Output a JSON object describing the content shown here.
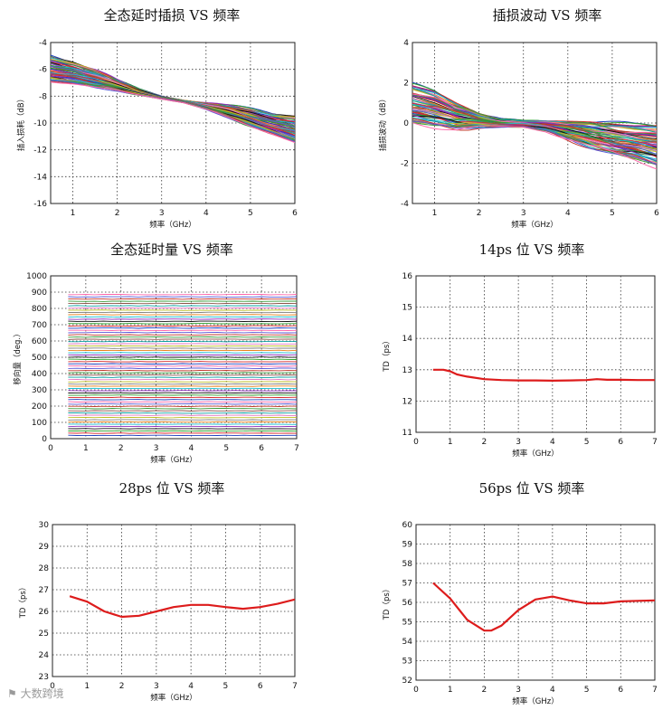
{
  "chart_data": [
    {
      "id": "c1",
      "type": "line",
      "title": "全态延时插损 VS 频率",
      "xlabel": "频率（GHz）",
      "ylabel": "插入损耗（dB）",
      "xlim": [
        0.5,
        6
      ],
      "ylim": [
        -16,
        -4
      ],
      "xticks": [
        1,
        2,
        3,
        4,
        5,
        6
      ],
      "yticks": [
        -16,
        -14,
        -12,
        -10,
        -8,
        -6,
        -4
      ],
      "grid": true,
      "series_count": 64,
      "envelope": {
        "x": [
          0.5,
          1.0,
          1.5,
          2.0,
          2.5,
          3.0,
          3.5,
          4.0,
          4.5,
          5.0,
          5.5,
          6.0
        ],
        "upper": [
          -5.0,
          -5.4,
          -6.0,
          -6.8,
          -7.5,
          -8.0,
          -8.3,
          -8.5,
          -8.7,
          -9.0,
          -9.3,
          -9.4
        ],
        "lower": [
          -6.9,
          -7.1,
          -7.4,
          -7.6,
          -7.9,
          -8.2,
          -8.5,
          -9.0,
          -9.6,
          -10.2,
          -10.8,
          -11.5
        ]
      }
    },
    {
      "id": "c2",
      "type": "line",
      "title": "插损波动 VS 频率",
      "xlabel": "频率（GHz）",
      "ylabel": "插损波动（dB）",
      "xlim": [
        0.5,
        6
      ],
      "ylim": [
        -4,
        4
      ],
      "xticks": [
        1,
        2,
        3,
        4,
        5,
        6
      ],
      "yticks": [
        -4,
        -2,
        0,
        2,
        4
      ],
      "grid": true,
      "series_count": 64,
      "envelope": {
        "x": [
          0.5,
          1.0,
          1.5,
          2.0,
          2.5,
          3.0,
          3.5,
          4.0,
          4.5,
          5.0,
          5.5,
          6.0
        ],
        "upper": [
          1.9,
          1.6,
          1.0,
          0.5,
          0.2,
          0.1,
          0.1,
          0.1,
          0.1,
          0.0,
          -0.1,
          -0.1
        ],
        "lower": [
          0.0,
          -0.2,
          -0.3,
          -0.2,
          -0.2,
          -0.2,
          -0.4,
          -0.8,
          -1.2,
          -1.5,
          -1.8,
          -2.2
        ]
      }
    },
    {
      "id": "c3",
      "type": "line",
      "title": "全态延时量 VS 频率",
      "xlabel": "频率（GHz）",
      "ylabel": "移向量（deg.）",
      "xlim": [
        0,
        7
      ],
      "ylim": [
        0,
        1000
      ],
      "xticks": [
        0,
        1,
        2,
        3,
        4,
        5,
        6,
        7
      ],
      "yticks": [
        0,
        100,
        200,
        300,
        400,
        500,
        600,
        700,
        800,
        900,
        1000
      ],
      "grid": true,
      "x_start": 0.5,
      "levels_min": 20,
      "levels_max": 885,
      "series_count": 64
    },
    {
      "id": "c4",
      "type": "line",
      "title": "14ps 位 VS 频率",
      "xlabel": "频率（GHz）",
      "ylabel": "TD（ps）",
      "xlim": [
        0,
        7
      ],
      "ylim": [
        11,
        16
      ],
      "xticks": [
        0,
        1,
        2,
        3,
        4,
        5,
        6,
        7
      ],
      "yticks": [
        11,
        12,
        13,
        14,
        15,
        16
      ],
      "grid": true,
      "series": [
        {
          "color": "#dd1c1c",
          "x": [
            0.5,
            0.8,
            1.0,
            1.2,
            1.5,
            2.0,
            2.5,
            3.0,
            3.5,
            4.0,
            4.5,
            5.0,
            5.3,
            5.6,
            6.0,
            6.5,
            7.0
          ],
          "y": [
            13.0,
            13.0,
            12.95,
            12.85,
            12.78,
            12.7,
            12.67,
            12.66,
            12.66,
            12.65,
            12.66,
            12.67,
            12.7,
            12.68,
            12.68,
            12.67,
            12.67
          ]
        }
      ]
    },
    {
      "id": "c5",
      "type": "line",
      "title": "28ps 位 VS 频率",
      "xlabel": "频率（GHz）",
      "ylabel": "TD（ps）",
      "xlim": [
        0,
        7
      ],
      "ylim": [
        23,
        30
      ],
      "xticks": [
        0,
        1,
        2,
        3,
        4,
        5,
        6,
        7
      ],
      "yticks": [
        23,
        24,
        25,
        26,
        27,
        28,
        29,
        30
      ],
      "grid": true,
      "series": [
        {
          "color": "#dd1c1c",
          "x": [
            0.5,
            1.0,
            1.5,
            2.0,
            2.5,
            3.0,
            3.5,
            4.0,
            4.5,
            5.0,
            5.5,
            6.0,
            6.5,
            7.0
          ],
          "y": [
            26.7,
            26.45,
            26.0,
            25.75,
            25.8,
            26.0,
            26.2,
            26.3,
            26.3,
            26.2,
            26.12,
            26.2,
            26.35,
            26.55
          ]
        }
      ]
    },
    {
      "id": "c6",
      "type": "line",
      "title": "56ps 位 VS 频率",
      "xlabel": "频率（GHz）",
      "ylabel": "TD（ps）",
      "xlim": [
        0,
        7
      ],
      "ylim": [
        52,
        60
      ],
      "xticks": [
        0,
        1,
        2,
        3,
        4,
        5,
        6,
        7
      ],
      "yticks": [
        52,
        53,
        54,
        55,
        56,
        57,
        58,
        59,
        60
      ],
      "grid": true,
      "series": [
        {
          "color": "#dd1c1c",
          "x": [
            0.5,
            1.0,
            1.5,
            2.0,
            2.2,
            2.5,
            3.0,
            3.5,
            4.0,
            4.5,
            5.0,
            5.5,
            6.0,
            6.5,
            7.0
          ],
          "y": [
            57.0,
            56.2,
            55.1,
            54.55,
            54.55,
            54.8,
            55.6,
            56.15,
            56.3,
            56.1,
            55.95,
            55.95,
            56.05,
            56.08,
            56.1
          ]
        }
      ]
    }
  ],
  "watermark": {
    "logo_text": "大数跨境"
  }
}
